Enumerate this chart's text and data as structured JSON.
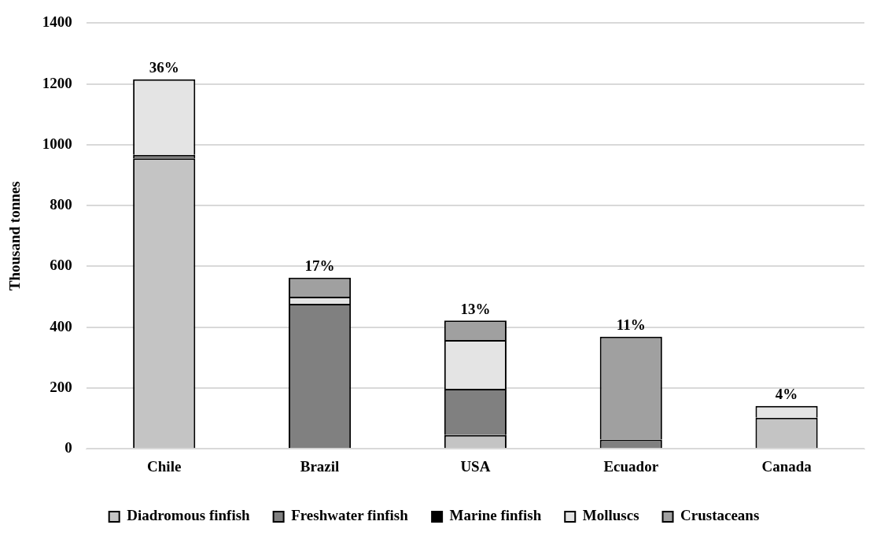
{
  "chart_data": {
    "type": "bar",
    "ylabel": "Thousand tonnes",
    "stacked": true,
    "categories": [
      "Chile",
      "Brazil",
      "USA",
      "Ecuador",
      "Canada"
    ],
    "series": [
      {
        "name": "Diadromous finfish",
        "color": "#c4c4c4",
        "values": [
          955,
          0,
          45,
          0,
          102
        ]
      },
      {
        "name": "Freshwater finfish",
        "color": "#808080",
        "values": [
          12,
          477,
          152,
          30,
          0
        ]
      },
      {
        "name": "Marine finfish",
        "color": "#000000",
        "values": [
          0,
          0,
          0,
          0,
          0
        ]
      },
      {
        "name": "Molluscs",
        "color": "#e4e4e4",
        "values": [
          248,
          23,
          161,
          0,
          39
        ]
      },
      {
        "name": "Crustaceans",
        "color": "#a0a0a0",
        "values": [
          0,
          63,
          64,
          339,
          0
        ]
      }
    ],
    "annotations": [
      {
        "text": "36%",
        "x": "Chile",
        "y": 1215
      },
      {
        "text": "17%",
        "x": "Brazil",
        "y": 563
      },
      {
        "text": "13%",
        "x": "USA",
        "y": 422
      },
      {
        "text": "11%",
        "x": "Ecuador",
        "y": 369
      },
      {
        "text": "4%",
        "x": "Canada",
        "y": 141
      }
    ],
    "ylim": [
      0,
      1400
    ],
    "yticks": [
      0,
      200,
      400,
      600,
      800,
      1000,
      1200,
      1400
    ],
    "grid": "y",
    "legend": "bottom"
  }
}
